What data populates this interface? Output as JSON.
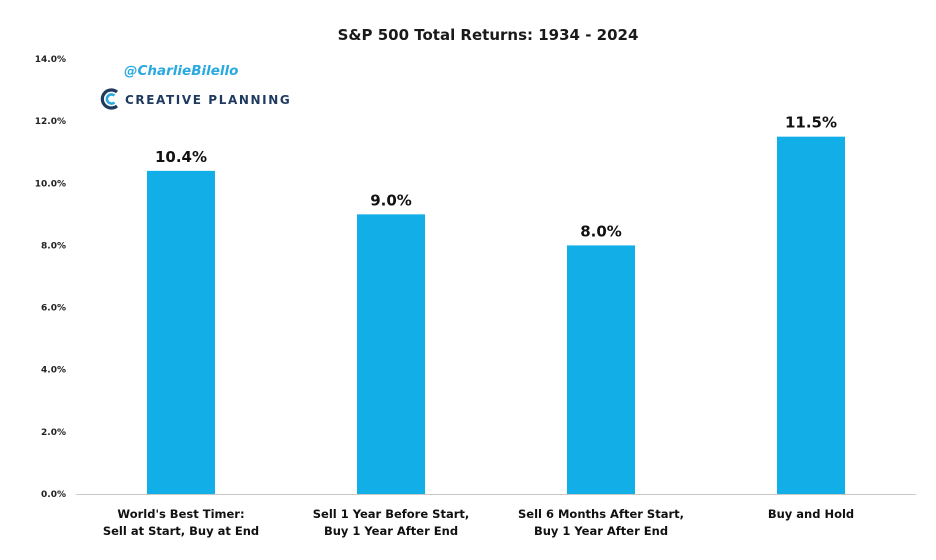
{
  "watermark": {
    "handle": "@CharlieBilello",
    "brand": "CREATIVE PLANNING",
    "handle_color": "#2aa9e0",
    "brand_color": "#1f3a5f",
    "logo_accent": "#2aa9e0"
  },
  "chart_data": {
    "type": "bar",
    "title": "S&P 500 Total Returns: 1934 - 2024",
    "categories": [
      [
        "World's Best Timer:",
        "Sell at Start, Buy at End"
      ],
      [
        "Sell 1 Year Before Start,",
        "Buy 1 Year After End"
      ],
      [
        "Sell 6 Months After Start,",
        "Buy 1 Year After End"
      ],
      [
        "Buy and Hold"
      ]
    ],
    "values": [
      10.4,
      9.0,
      8.0,
      11.5
    ],
    "data_labels": [
      "10.4%",
      "9.0%",
      "8.0%",
      "11.5%"
    ],
    "y_ticks": [
      0,
      2,
      4,
      6,
      8,
      10,
      12,
      14
    ],
    "y_tick_labels": [
      "0.0%",
      "2.0%",
      "4.0%",
      "6.0%",
      "8.0%",
      "10.0%",
      "12.0%",
      "14.0%"
    ],
    "ylim": [
      0,
      14
    ],
    "grid": false,
    "bar_color": "#11aee8",
    "axis_color": "#c8c8c8"
  }
}
